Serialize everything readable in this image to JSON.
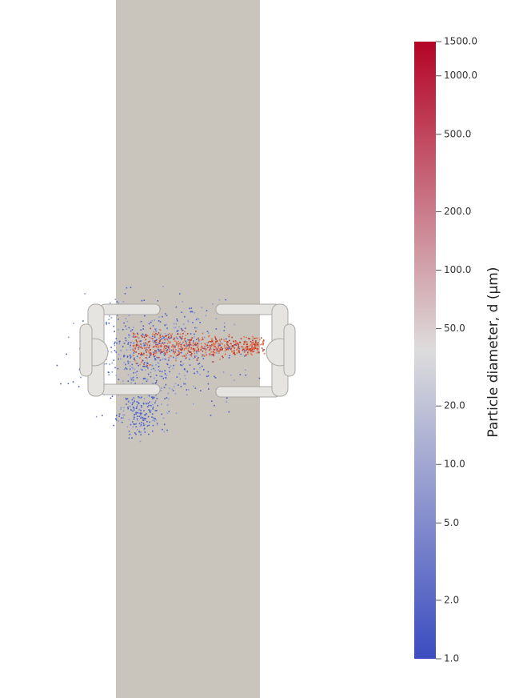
{
  "chart_data": {
    "type": "colorbar",
    "label": "Particle diameter, d (μm)",
    "scale": "log",
    "lim": [
      1,
      1500
    ],
    "colors": [
      "#3b4cc0",
      "#dddcdc",
      "#b40426"
    ],
    "ticks": [
      {
        "value": 1500,
        "label": "1500.0"
      },
      {
        "value": 1000,
        "label": "1000.0"
      },
      {
        "value": 500,
        "label": "500.0"
      },
      {
        "value": 200,
        "label": "200.0"
      },
      {
        "value": 100,
        "label": "100.0"
      },
      {
        "value": 50,
        "label": "50.0"
      },
      {
        "value": 20,
        "label": "20.0"
      },
      {
        "value": 10,
        "label": "10.0"
      },
      {
        "value": 5,
        "label": "5.0"
      },
      {
        "value": 2,
        "label": "2.0"
      },
      {
        "value": 1,
        "label": "1.0"
      }
    ]
  }
}
